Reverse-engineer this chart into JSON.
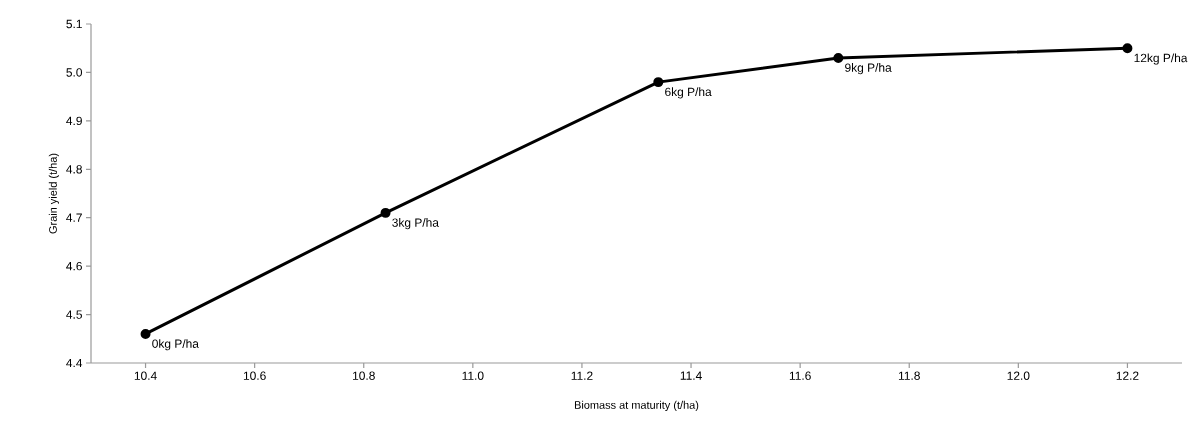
{
  "chart_data": {
    "type": "line",
    "xlabel": "Biomass at maturity (t/ha)",
    "ylabel": "Grain yield (t/ha)",
    "x": [
      10.4,
      10.84,
      11.34,
      11.67,
      12.2
    ],
    "series": [
      {
        "color": "#000000",
        "values": [
          4.46,
          4.71,
          4.98,
          5.03,
          5.05
        ]
      }
    ],
    "marker": "circle",
    "line_style": "solid",
    "xlim": [
      10.3,
      12.3
    ],
    "xticks": [
      {
        "value": 10.4,
        "label": "10.4"
      },
      {
        "value": 10.6,
        "label": "10.6"
      },
      {
        "value": 10.8,
        "label": "10.8"
      },
      {
        "value": 11.0,
        "label": "11.0"
      },
      {
        "value": 11.2,
        "label": "11.2"
      },
      {
        "value": 11.4,
        "label": "11.4"
      },
      {
        "value": 11.6,
        "label": "11.6"
      },
      {
        "value": 11.8,
        "label": "11.8"
      },
      {
        "value": 12.0,
        "label": "12.0"
      },
      {
        "value": 12.2,
        "label": "12.2"
      }
    ],
    "ylim": [
      4.4,
      5.1
    ],
    "yticks": [
      {
        "value": 4.4,
        "label": "4.4"
      },
      {
        "value": 4.5,
        "label": "4.5"
      },
      {
        "value": 4.6,
        "label": "4.6"
      },
      {
        "value": 4.7,
        "label": "4.7"
      },
      {
        "value": 4.8,
        "label": "4.8"
      },
      {
        "value": 4.9,
        "label": "4.9"
      },
      {
        "value": 5.0,
        "label": "5.0"
      },
      {
        "value": 5.1,
        "label": "5.1"
      }
    ],
    "annotations": [
      {
        "text": "0kg P/ha",
        "x": 10.4,
        "y": 4.46
      },
      {
        "text": "3kg P/ha",
        "x": 10.84,
        "y": 4.71
      },
      {
        "text": "6kg P/ha",
        "x": 11.34,
        "y": 4.98
      },
      {
        "text": "9kg P/ha",
        "x": 11.67,
        "y": 5.03
      },
      {
        "text": "12kg P/ha",
        "x": 12.2,
        "y": 5.05
      }
    ]
  }
}
